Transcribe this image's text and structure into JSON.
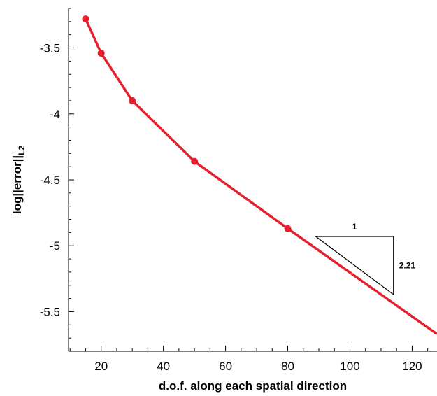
{
  "chart_data": {
    "type": "line",
    "title": "",
    "xlabel": "d.o.f. along each spatial direction",
    "ylabel": "log||error||",
    "ylabel_subscript": "L2",
    "xlim": [
      9.5,
      128
    ],
    "ylim": [
      -5.8,
      -3.2
    ],
    "x_ticks": [
      20,
      40,
      60,
      80,
      100,
      120
    ],
    "x_tick_labels": [
      "20",
      "40",
      "60",
      "80",
      "100",
      "120"
    ],
    "y_ticks": [
      -3.5,
      -4,
      -4.5,
      -5,
      -5.5
    ],
    "y_tick_labels": [
      "-3.5",
      "-4",
      "-4.5",
      "-5",
      "-5.5"
    ],
    "series": [
      {
        "color": "#e4202e",
        "x": [
          15,
          20,
          30,
          50,
          80,
          128
        ],
        "y": [
          -3.28,
          -3.54,
          -3.9,
          -4.36,
          -4.87,
          -5.67
        ],
        "markers": [
          true,
          true,
          true,
          true,
          true,
          false
        ]
      }
    ],
    "slope_triangle": {
      "run_label": "1",
      "rise_label": "2.21",
      "corners": {
        "top_left": [
          89,
          -4.93
        ],
        "top_right": [
          114,
          -4.93
        ],
        "bottom_right": [
          114,
          -5.37
        ]
      }
    },
    "grid": false
  }
}
